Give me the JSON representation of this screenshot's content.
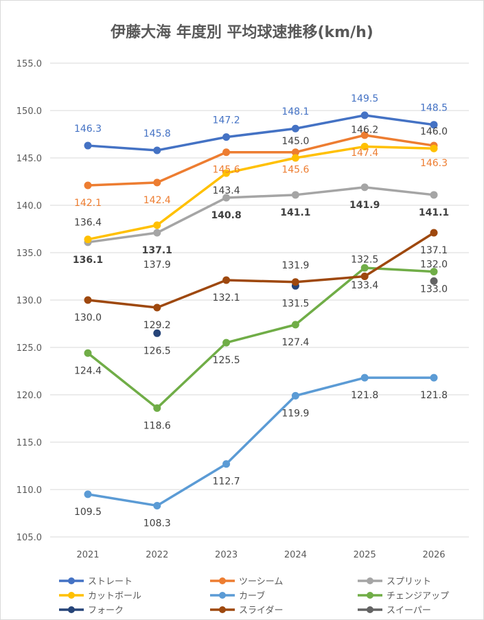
{
  "chart_data": {
    "type": "line",
    "title": "伊藤大海 年度別 平均球速推移(km/h)",
    "xlabel": "",
    "ylabel": "",
    "categories": [
      "2021",
      "2022",
      "2023",
      "2024",
      "2025",
      "2026"
    ],
    "ylim": [
      105,
      155
    ],
    "yticks": [
      "105.0",
      "110.0",
      "115.0",
      "120.0",
      "125.0",
      "130.0",
      "135.0",
      "140.0",
      "145.0",
      "150.0",
      "155.0"
    ],
    "grid": true,
    "legend_position": "bottom",
    "series": [
      {
        "name": "ストレート",
        "color": "#4472C4",
        "labelColor": "#4472C4",
        "values": [
          146.3,
          145.8,
          147.2,
          148.1,
          149.5,
          148.5
        ],
        "labelPos": "above"
      },
      {
        "name": "ツーシーム",
        "color": "#ED7D31",
        "labelColor": "#ED7D31",
        "values": [
          142.1,
          142.4,
          145.6,
          145.6,
          147.4,
          146.3
        ],
        "labelPos": "below"
      },
      {
        "name": "スプリット",
        "color": "#A5A5A5",
        "labelColor": "#404040",
        "bold": true,
        "values": [
          136.1,
          137.1,
          140.8,
          141.1,
          141.9,
          141.1
        ],
        "labelPos": "below"
      },
      {
        "name": "カットボール",
        "color": "#FFC000",
        "labelColor": "#404040",
        "values": [
          136.4,
          137.9,
          143.4,
          145.0,
          146.2,
          146.0
        ],
        "labelPos": "below"
      },
      {
        "name": "カーブ",
        "color": "#5B9BD5",
        "labelColor": "#404040",
        "values": [
          109.5,
          108.3,
          112.7,
          119.9,
          121.8,
          121.8
        ],
        "labelPos": "below"
      },
      {
        "name": "チェンジアップ",
        "color": "#70AD47",
        "labelColor": "#404040",
        "values": [
          124.4,
          118.6,
          125.5,
          127.4,
          133.4,
          133.0
        ],
        "labelPos": "below"
      },
      {
        "name": "フォーク",
        "color": "#264478",
        "labelColor": "#404040",
        "values": [
          null,
          126.5,
          null,
          131.5,
          null,
          null
        ],
        "labelPos": "below"
      },
      {
        "name": "スライダー",
        "color": "#9E480E",
        "labelColor": "#404040",
        "values": [
          130.0,
          129.2,
          132.1,
          131.9,
          132.5,
          137.1
        ],
        "labelPos": "below"
      },
      {
        "name": "スイーパー",
        "color": "#636363",
        "labelColor": "#404040",
        "values": [
          null,
          null,
          null,
          null,
          null,
          132.0
        ],
        "labelPos": "above"
      }
    ]
  }
}
